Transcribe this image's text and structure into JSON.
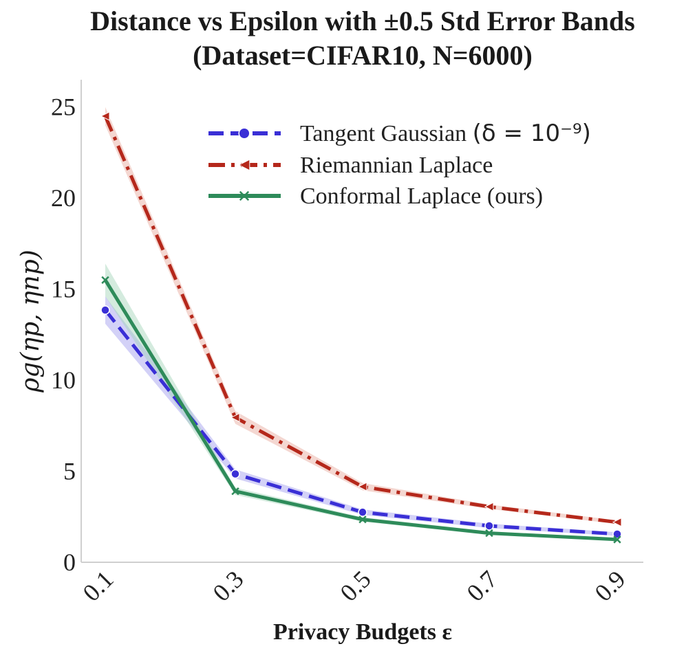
{
  "chart_data": {
    "type": "line",
    "title_line1": "Distance vs Epsilon with ±0.5 Std Error Bands",
    "title_line2": "(Dataset=CIFAR10, N=6000)",
    "xlabel": "Privacy Budgets ε",
    "ylabel_main": "ρg(ηp, ηnp)",
    "x": [
      0.1,
      0.3,
      0.5,
      0.7,
      0.9
    ],
    "x_tick_labels": [
      "0.1",
      "0.3",
      "0.5",
      "0.7",
      "0.9"
    ],
    "y_ticks": [
      0,
      5,
      10,
      15,
      20,
      25
    ],
    "y_tick_labels": [
      "0",
      "5",
      "10",
      "15",
      "20",
      "25"
    ],
    "ylim": [
      0,
      26.5
    ],
    "legend_position": "top-right",
    "series": [
      {
        "name": "Tangent Gaussian",
        "legend_suffix": "(δ = 10⁻⁹)",
        "color": "#3a2fd6",
        "band_color": "#9d98ee",
        "linestyle": "dashed",
        "marker": "circle",
        "values": [
          13.85,
          4.85,
          2.75,
          2.0,
          1.55
        ],
        "band": [
          0.75,
          0.25,
          0.15,
          0.12,
          0.1
        ]
      },
      {
        "name": "Riemannian Laplace",
        "legend_suffix": "",
        "color": "#b5281b",
        "band_color": "#e6a79a",
        "linestyle": "dashdot",
        "marker": "triangle-left",
        "values": [
          24.5,
          7.95,
          4.15,
          3.05,
          2.2
        ],
        "band": [
          0.5,
          0.35,
          0.2,
          0.12,
          0.1
        ]
      },
      {
        "name": "Conformal Laplace (ours)",
        "legend_suffix": "",
        "color": "#2e8b5a",
        "band_color": "#9fd2b5",
        "linestyle": "solid",
        "marker": "x",
        "values": [
          15.5,
          3.9,
          2.35,
          1.6,
          1.25
        ],
        "band": [
          0.9,
          0.2,
          0.12,
          0.1,
          0.08
        ]
      }
    ]
  }
}
